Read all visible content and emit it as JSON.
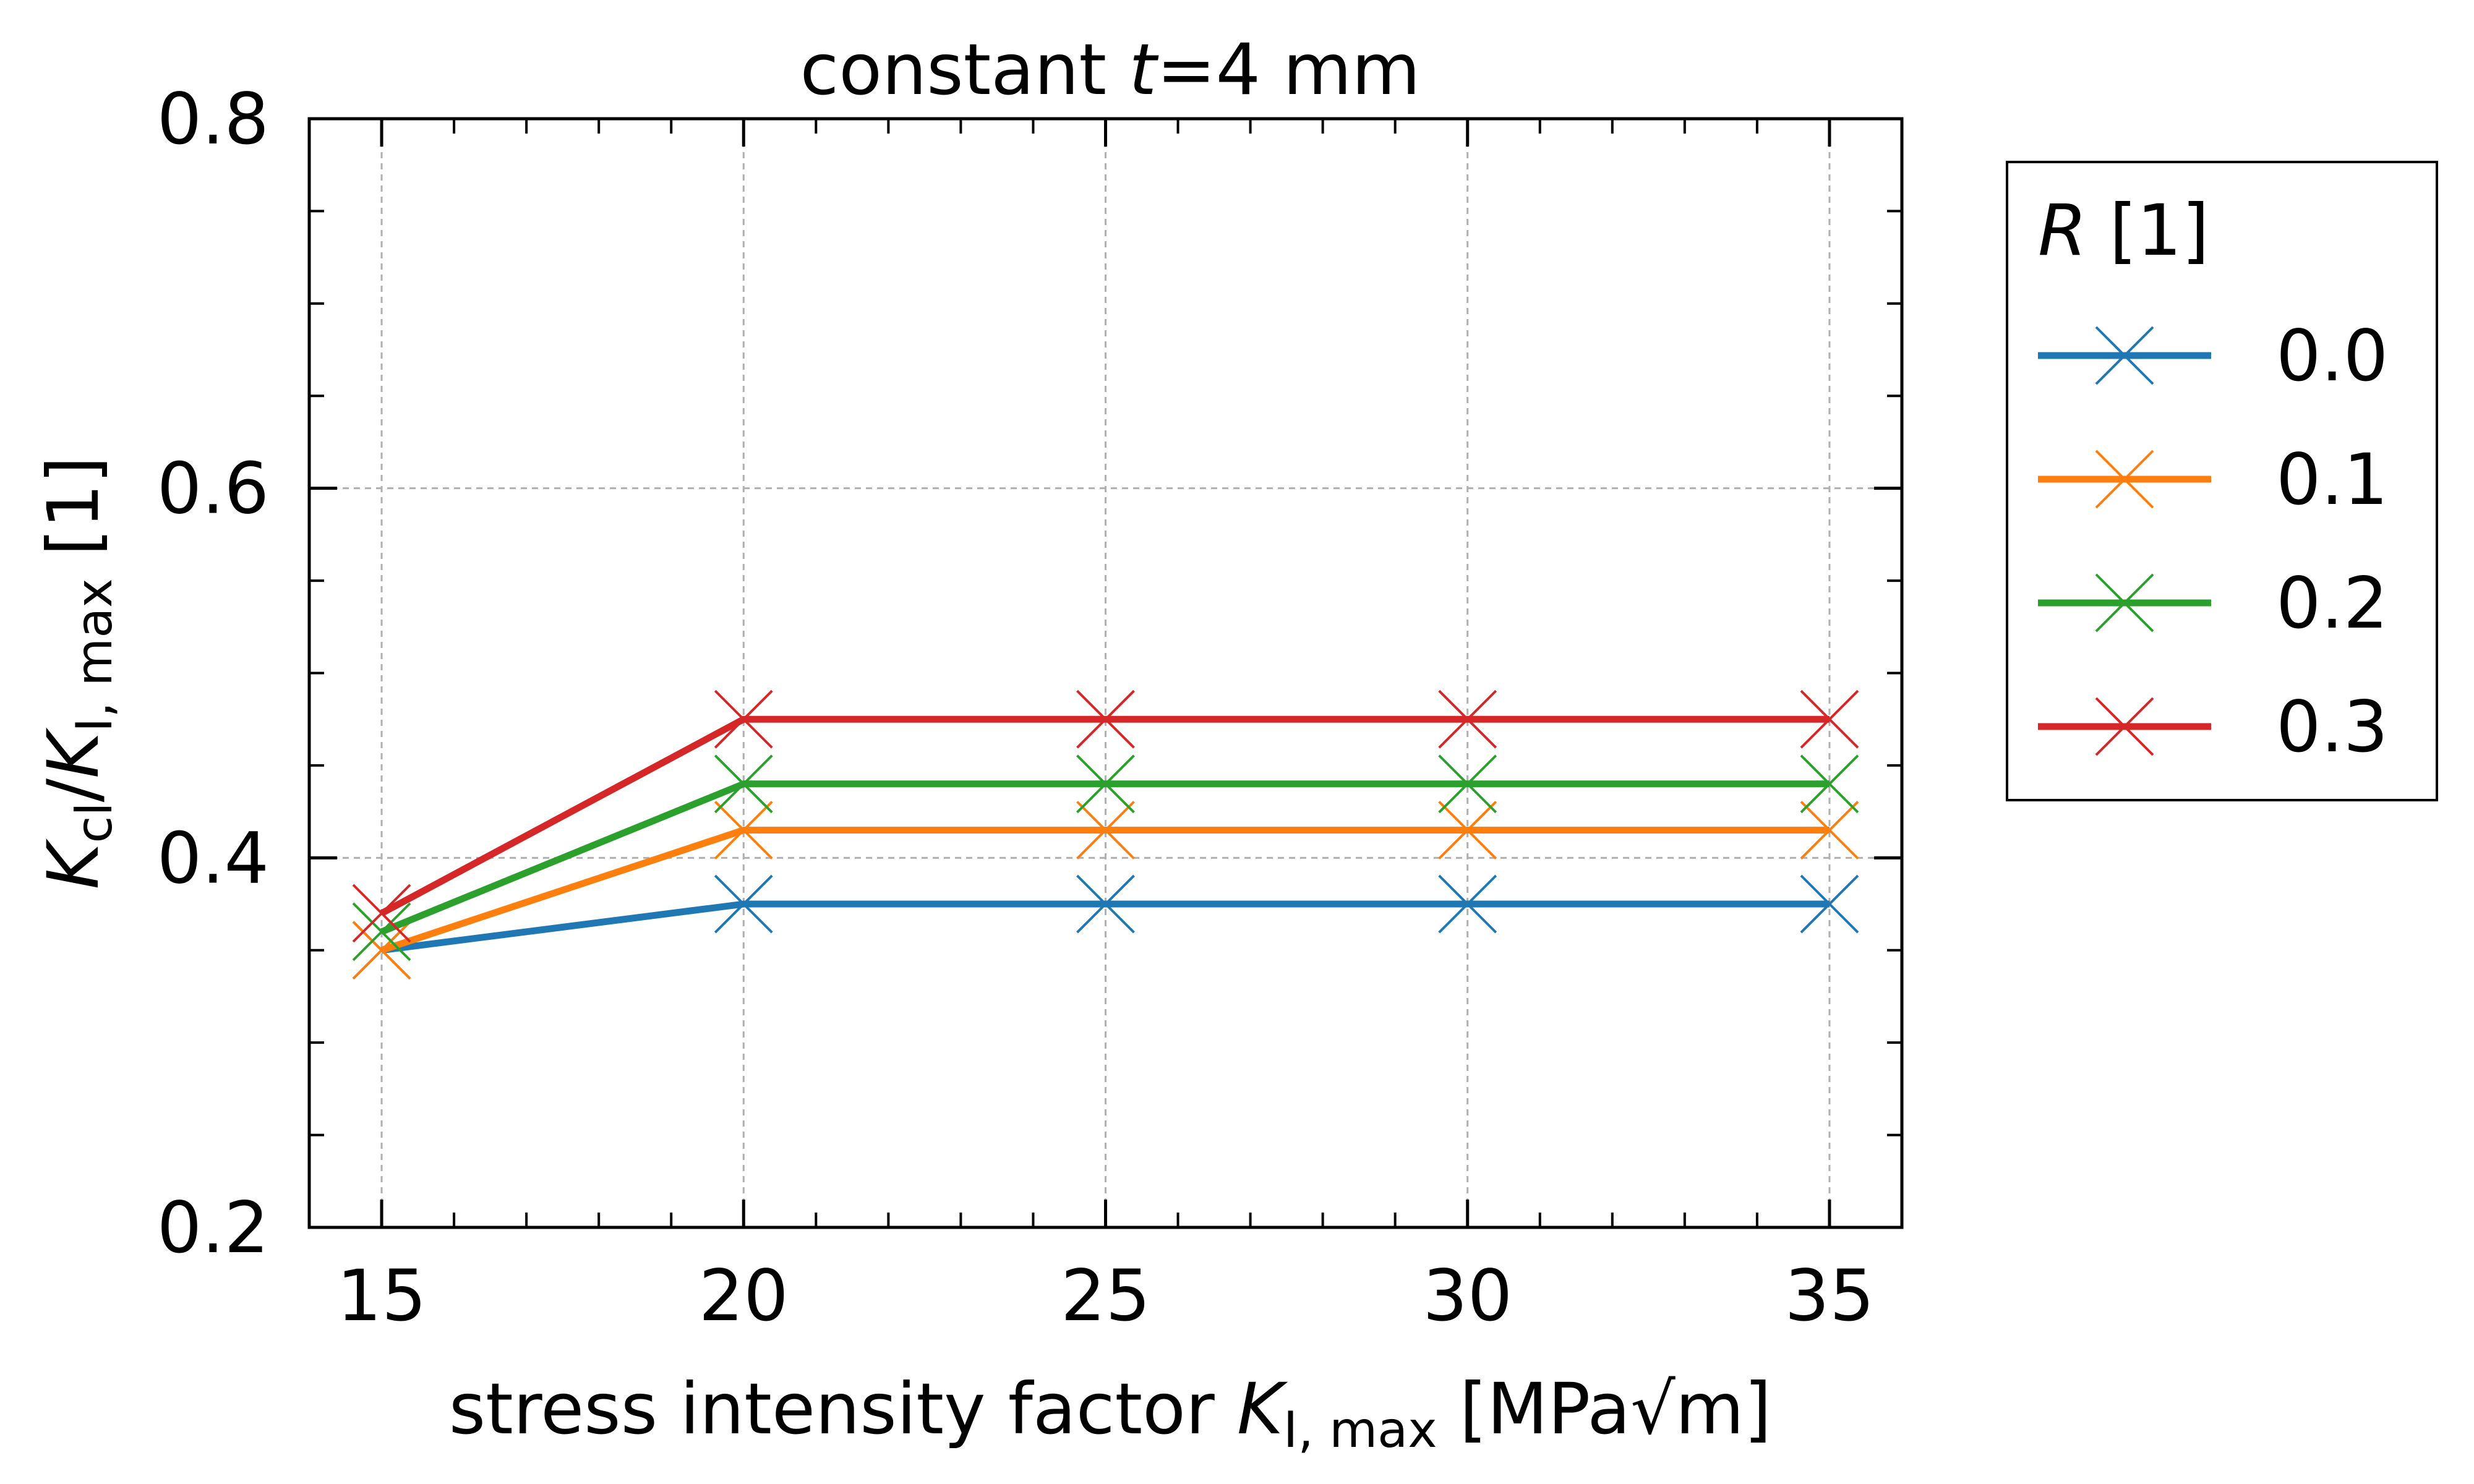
{
  "chart_data": {
    "type": "line",
    "title": {
      "prefix": "constant ",
      "var": "t",
      "suffix": "=4 mm"
    },
    "xlabel": {
      "prefix": "stress intensity factor  ",
      "var": "K",
      "sub": "I, max",
      "suffix": " [MPa√m]"
    },
    "ylabel": {
      "var1": "K",
      "sub1": "cl",
      "slash": "/",
      "var2": "K",
      "sub2": "I, max",
      "suffix": " [1]"
    },
    "x": [
      15,
      20,
      25,
      30,
      35
    ],
    "xticks": [
      "15",
      "20",
      "25",
      "30",
      "35"
    ],
    "yticks": [
      "0.2",
      "0.4",
      "0.6",
      "0.8"
    ],
    "xlim": [
      14,
      36
    ],
    "ylim": [
      0.2,
      0.8
    ],
    "grid": true,
    "marker": "x",
    "legend": {
      "title_var": "R",
      "title_suffix": " [1]",
      "placement": "outside right"
    },
    "series": [
      {
        "name": "0.0",
        "color": "#1f77b4",
        "values": [
          0.35,
          0.375,
          0.375,
          0.375,
          0.375
        ]
      },
      {
        "name": "0.1",
        "color": "#ff7f0e",
        "values": [
          0.35,
          0.415,
          0.415,
          0.415,
          0.415
        ]
      },
      {
        "name": "0.2",
        "color": "#2ca02c",
        "values": [
          0.36,
          0.44,
          0.44,
          0.44,
          0.44
        ]
      },
      {
        "name": "0.3",
        "color": "#d62728",
        "values": [
          0.37,
          0.475,
          0.475,
          0.475,
          0.475
        ]
      }
    ]
  }
}
